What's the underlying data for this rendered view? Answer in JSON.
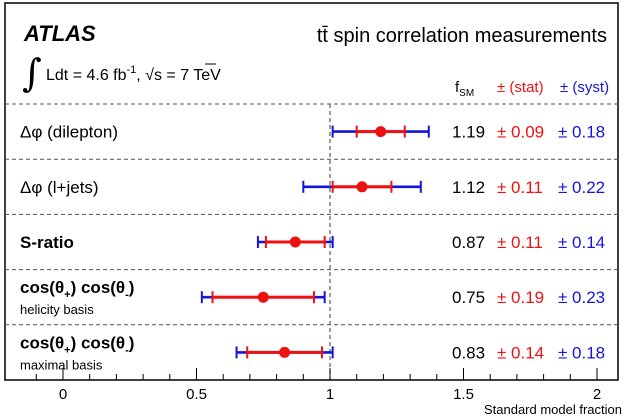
{
  "header": {
    "experiment": "ATLAS",
    "integral_sign": "∫",
    "lumi_text": "Ldt = 4.6 fb",
    "lumi_exp": "-1",
    "energy_sep": ", ",
    "sqrt_sign": "√",
    "energy_text": "s = 7 TeV",
    "title": "tt̄ spin correlation measurements"
  },
  "columns": {
    "fsm_main": "f",
    "fsm_sub": "SM",
    "stat": "± (stat)",
    "syst": "± (syst)"
  },
  "colors": {
    "stat": "#ee1111",
    "syst": "#1515d8",
    "point": "#ee1111"
  },
  "chart_data": {
    "type": "scatter",
    "orientation": "horizontal",
    "xlabel": "Standard model fraction",
    "xlim": [
      -0.15,
      2.1
    ],
    "x_ticks": [
      0,
      0.5,
      1,
      1.5,
      2
    ],
    "x_tick_labels": [
      "0",
      "0.5",
      "1",
      "1.5",
      "2"
    ],
    "reference_line": 1,
    "measurements": [
      {
        "label": "Δφ (dilepton)",
        "bold": false,
        "sublabel": "",
        "value": 1.19,
        "stat": 0.09,
        "syst": 0.18,
        "value_text": "1.19",
        "stat_text": "± 0.09",
        "syst_text": "± 0.18"
      },
      {
        "label": "Δφ (l+jets)",
        "bold": false,
        "sublabel": "",
        "value": 1.12,
        "stat": 0.11,
        "syst": 0.22,
        "value_text": "1.12",
        "stat_text": "± 0.11",
        "syst_text": "± 0.22"
      },
      {
        "label": "S-ratio",
        "bold": true,
        "sublabel": "",
        "value": 0.87,
        "stat": 0.11,
        "syst": 0.14,
        "value_text": "0.87",
        "stat_text": "± 0.11",
        "syst_text": "± 0.14"
      },
      {
        "label": "cos(θ+) cos(θ-)",
        "bold": true,
        "sublabel": "helicity basis",
        "value": 0.75,
        "stat": 0.19,
        "syst": 0.23,
        "value_text": "0.75",
        "stat_text": "± 0.19",
        "syst_text": "± 0.23"
      },
      {
        "label": "cos(θ+) cos(θ-)",
        "bold": true,
        "sublabel": "maximal basis",
        "value": 0.83,
        "stat": 0.14,
        "syst": 0.18,
        "value_text": "0.83",
        "stat_text": "± 0.14",
        "syst_text": "± 0.18"
      }
    ]
  }
}
